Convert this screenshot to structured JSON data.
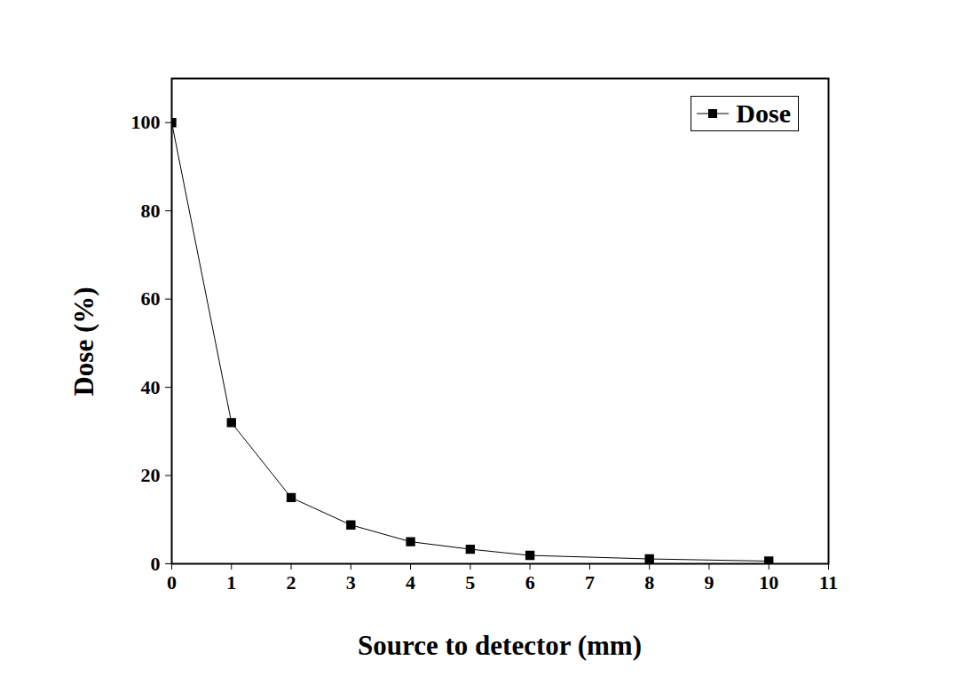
{
  "chart_data": {
    "type": "line",
    "xlabel": "Source to detector (mm)",
    "ylabel": "Dose (%)",
    "x": [
      0,
      1,
      2,
      3,
      4,
      5,
      6,
      8,
      10
    ],
    "series": [
      {
        "name": "Dose",
        "color": "#000000",
        "marker": "square",
        "line_style": "solid",
        "values": [
          100,
          32,
          15,
          8.8,
          5,
          3.3,
          1.9,
          1.1,
          0.6
        ]
      }
    ],
    "xlim": [
      0,
      11
    ],
    "xticks": [
      0,
      1,
      2,
      3,
      4,
      5,
      6,
      7,
      8,
      9,
      10,
      11
    ],
    "ylim": [
      0,
      110
    ],
    "yticks": [
      0,
      20,
      40,
      60,
      80,
      100
    ],
    "grid": false,
    "legend": "top-right"
  }
}
